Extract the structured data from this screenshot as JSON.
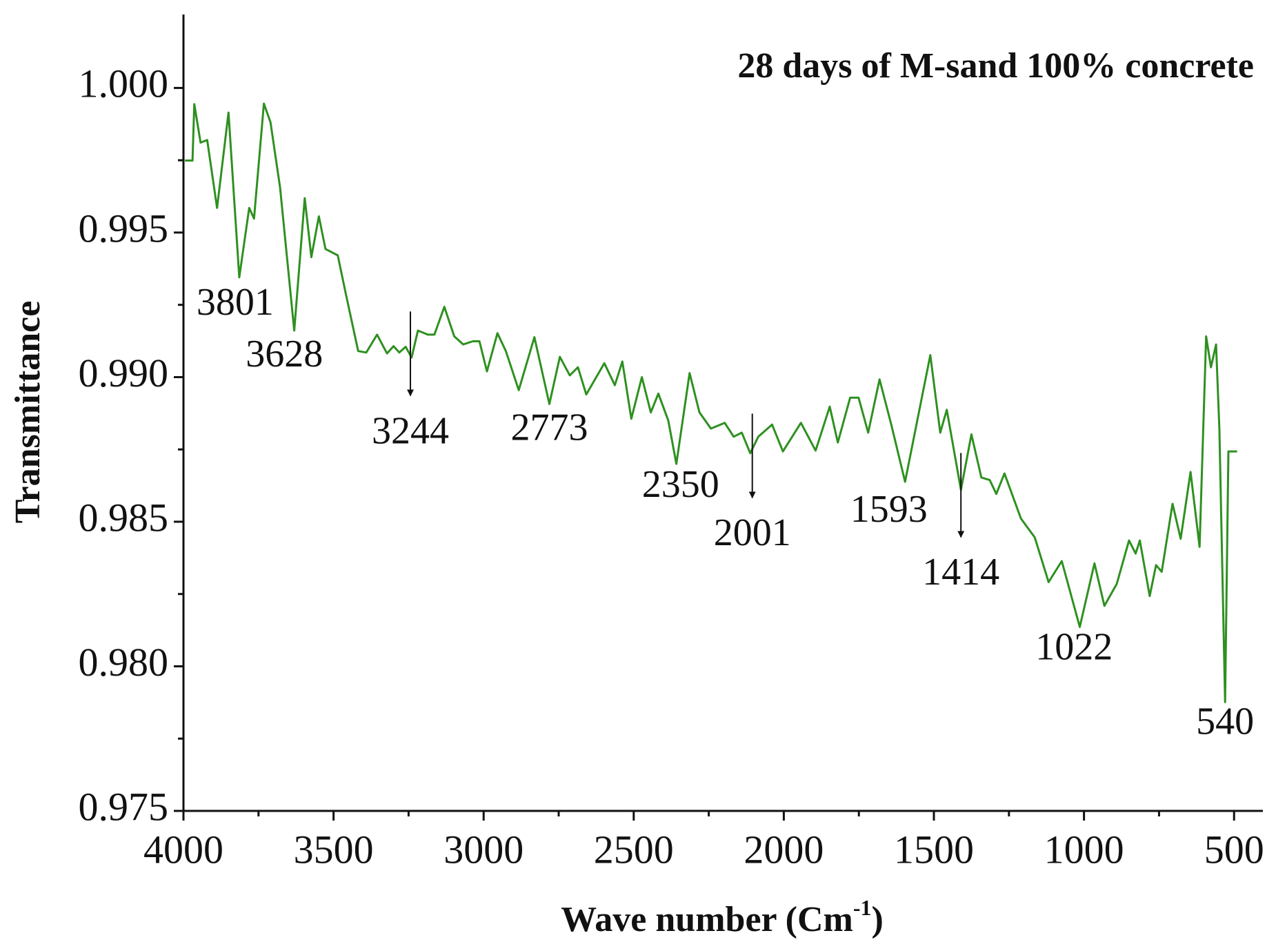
{
  "chart_data": {
    "type": "line",
    "title": "28 days of M-sand 100% concrete",
    "title_color": "#3d8c1c",
    "y_label": "Transmittance",
    "x_label": {
      "text": "Wave number (Cm",
      "superscript": "-1",
      "suffix": ")"
    },
    "xlim": [
      4000,
      404
    ],
    "ylim": [
      0.975,
      1.00254
    ],
    "xticks": [
      4000,
      3500,
      3000,
      2500,
      2000,
      1500,
      1000,
      500
    ],
    "xticks_minor": [
      3750,
      3250,
      2750,
      2250,
      1750,
      1250,
      750
    ],
    "yticks": [
      {
        "value": 1,
        "label": "1.000"
      },
      0.995,
      {
        "value": 0.99,
        "label": "0.990"
      },
      0.985,
      {
        "value": 0.98,
        "label": "0.980"
      },
      0.975
    ],
    "yticks_minor": [
      0.9975,
      0.9925,
      0.9875,
      0.9825,
      0.9775
    ],
    "x": [
      3995,
      3970,
      3964,
      3943,
      3921,
      3888,
      3850,
      3814,
      3781,
      3765,
      3732,
      3710,
      3678,
      3631,
      3596,
      3574,
      3549,
      3527,
      3486,
      3459,
      3418,
      3391,
      3355,
      3322,
      3300,
      3281,
      3260,
      3240,
      3219,
      3186,
      3164,
      3131,
      3098,
      3068,
      3036,
      3014,
      2989,
      2954,
      2926,
      2883,
      2831,
      2781,
      2746,
      2713,
      2686,
      2658,
      2598,
      2563,
      2538,
      2508,
      2473,
      2443,
      2418,
      2385,
      2358,
      2314,
      2281,
      2243,
      2197,
      2167,
      2140,
      2112,
      2085,
      2039,
      2003,
      1943,
      1894,
      1847,
      1820,
      1779,
      1751,
      1719,
      1681,
      1642,
      1596,
      1512,
      1479,
      1457,
      1410,
      1375,
      1342,
      1314,
      1292,
      1265,
      1210,
      1164,
      1118,
      1074,
      1014,
      965,
      932,
      891,
      850,
      828,
      814,
      781,
      760,
      741,
      705,
      678,
      645,
      615,
      593,
      577,
      560,
      549,
      530,
      519,
      490
    ],
    "series": [
      {
        "name": "28 days of M-sand 100% concrete",
        "color": "#2e9020",
        "values": [
          0.99749,
          0.99749,
          0.99944,
          0.99811,
          0.9982,
          0.99585,
          0.99915,
          0.99345,
          0.99585,
          0.99548,
          0.99946,
          0.99881,
          0.99655,
          0.99161,
          0.99619,
          0.99415,
          0.99556,
          0.99443,
          0.99421,
          0.99288,
          0.9909,
          0.99085,
          0.99147,
          0.99082,
          0.99107,
          0.99085,
          0.99105,
          0.99068,
          0.99161,
          0.99147,
          0.99147,
          0.99243,
          0.99141,
          0.99113,
          0.99124,
          0.99124,
          0.9902,
          0.99152,
          0.9909,
          0.98955,
          0.99138,
          0.98907,
          0.9907,
          0.99006,
          0.99034,
          0.9894,
          0.99048,
          0.98972,
          0.99054,
          0.98856,
          0.99,
          0.98878,
          0.98943,
          0.9885,
          0.987,
          0.99014,
          0.98878,
          0.98822,
          0.98842,
          0.98794,
          0.98808,
          0.98737,
          0.98794,
          0.98836,
          0.98743,
          0.98842,
          0.98746,
          0.98898,
          0.98774,
          0.98929,
          0.98929,
          0.98808,
          0.98992,
          0.98836,
          0.98638,
          0.99076,
          0.98808,
          0.98887,
          0.9861,
          0.98802,
          0.98653,
          0.98644,
          0.98596,
          0.98667,
          0.98511,
          0.98446,
          0.98291,
          0.98364,
          0.98136,
          0.98356,
          0.98209,
          0.98285,
          0.98435,
          0.9839,
          0.98435,
          0.98243,
          0.9835,
          0.98327,
          0.98562,
          0.98441,
          0.98672,
          0.98413,
          0.99141,
          0.99034,
          0.99113,
          0.98822,
          0.97876,
          0.98743,
          0.98743
        ]
      }
    ],
    "annotations": [
      {
        "text": "3801",
        "x": 3828,
        "y": 0.99246
      },
      {
        "text": "3628",
        "x": 3664,
        "y": 0.99068
      },
      {
        "text": "3244",
        "x": 3244,
        "y": 0.98802,
        "arrow": true
      },
      {
        "text": "2773",
        "x": 2781,
        "y": 0.98813
      },
      {
        "text": "2350",
        "x": 2344,
        "y": 0.98616
      },
      {
        "text": "2001",
        "x": 2105,
        "y": 0.98449,
        "arrow": true
      },
      {
        "text": "1593",
        "x": 1650,
        "y": 0.98531
      },
      {
        "text": "1414",
        "x": 1410,
        "y": 0.98313,
        "arrow": true
      },
      {
        "text": "1022",
        "x": 1033,
        "y": 0.98054
      },
      {
        "text": "540",
        "x": 530,
        "y": 0.97797
      }
    ]
  }
}
